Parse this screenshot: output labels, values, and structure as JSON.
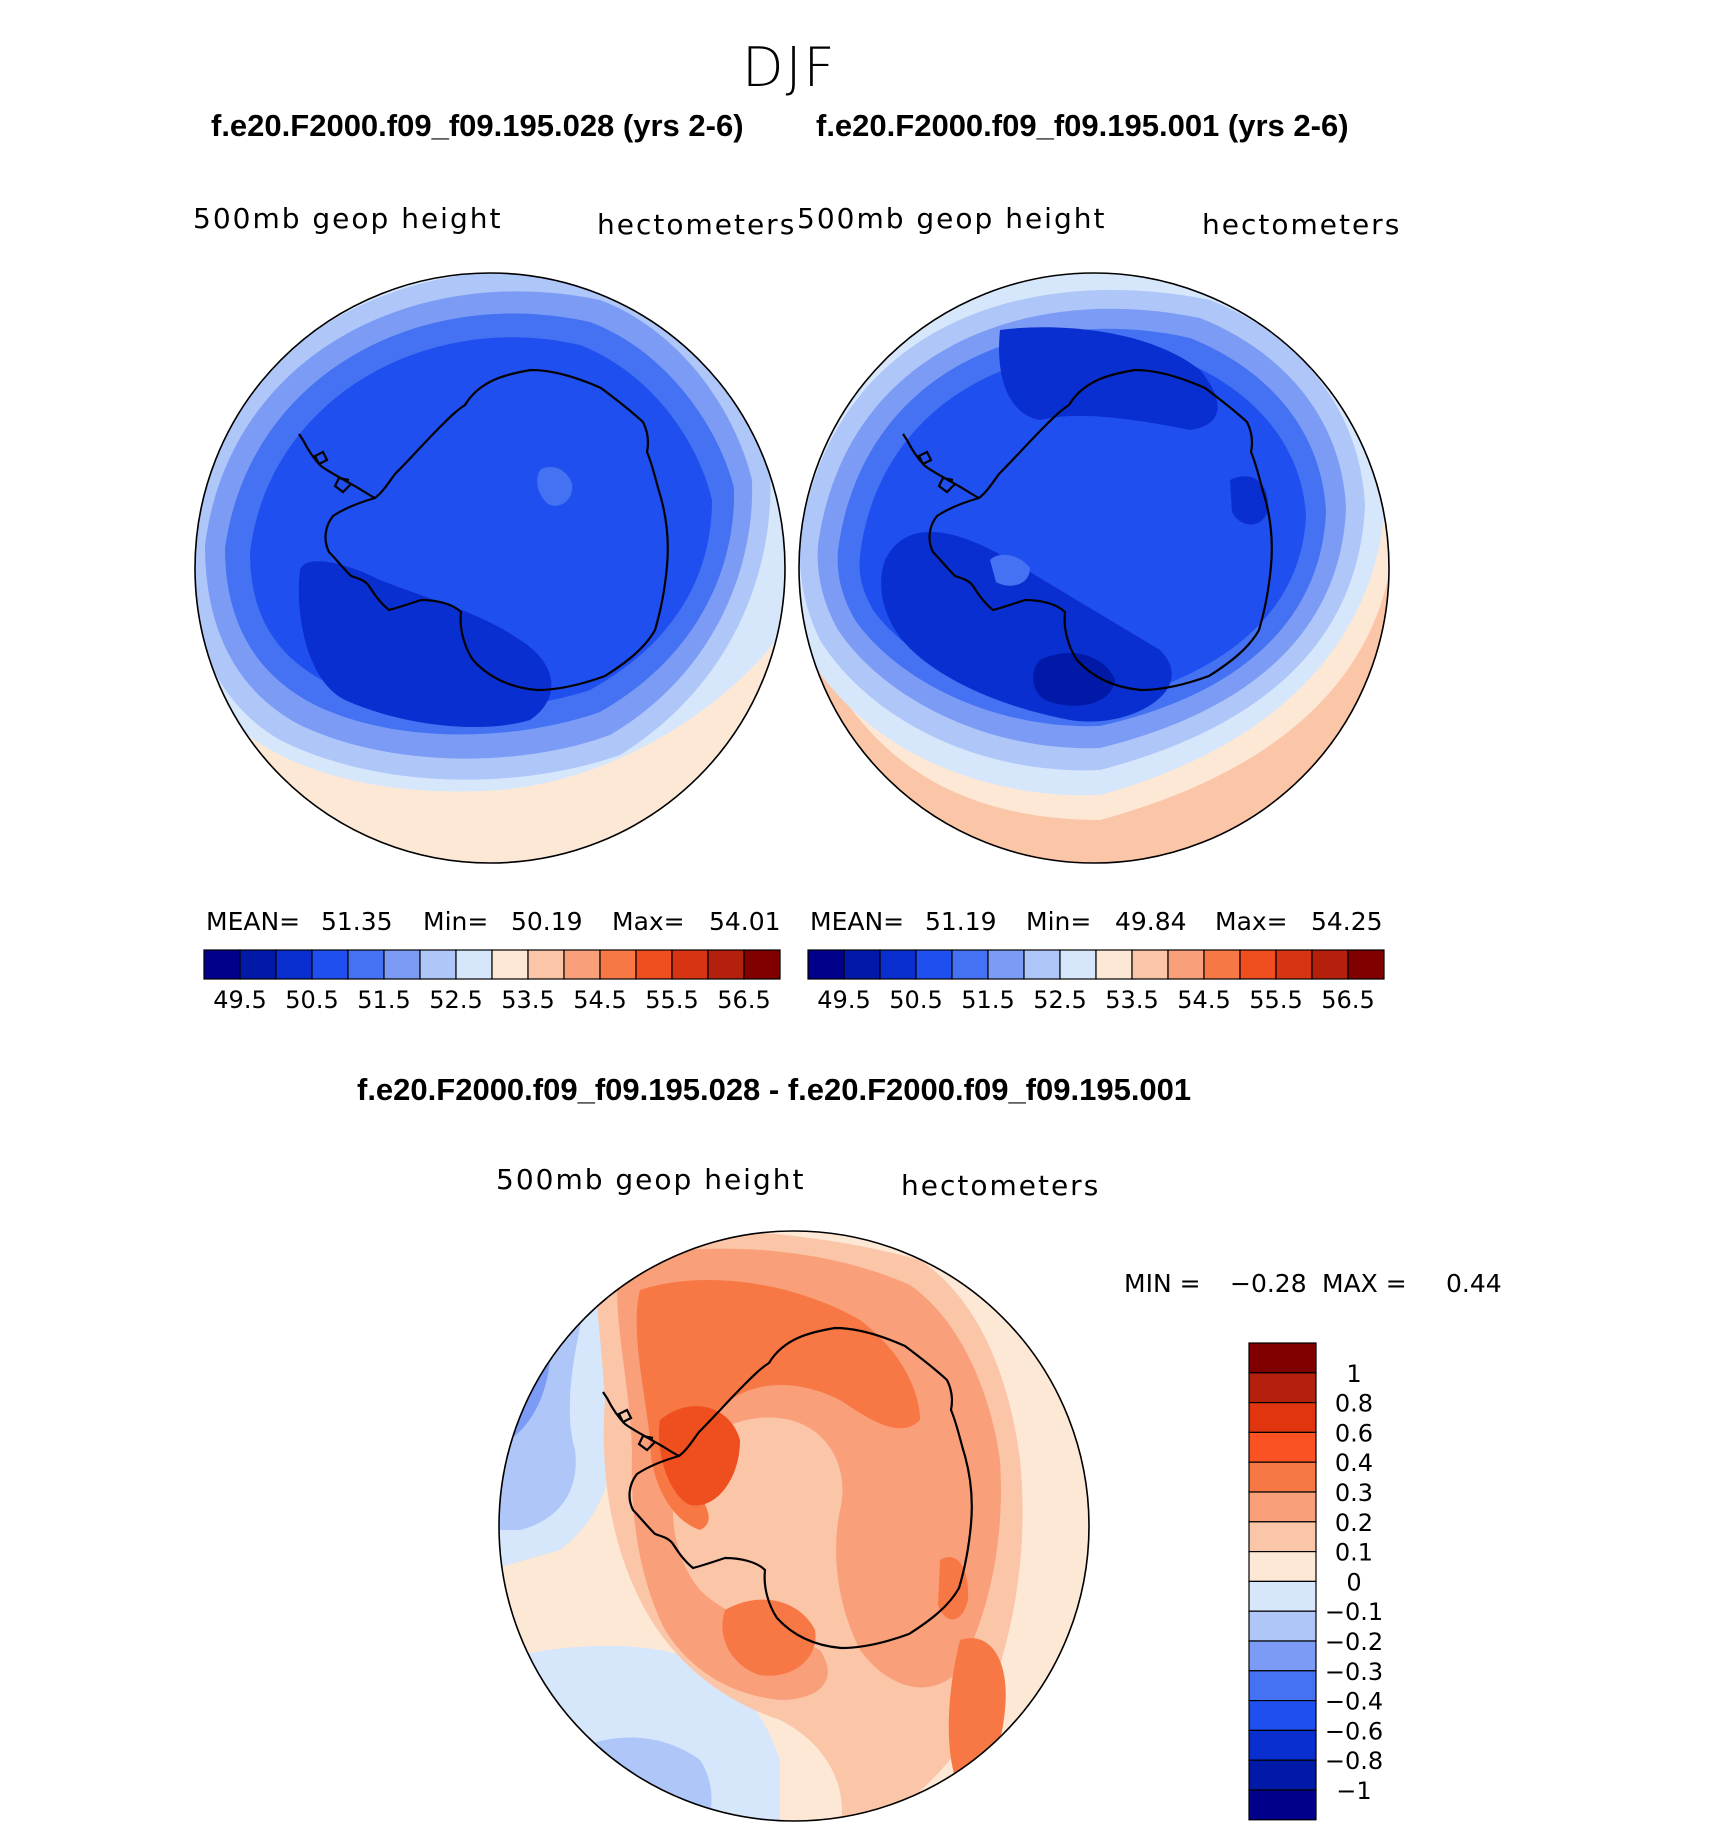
{
  "season": "DJF",
  "panels": [
    {
      "case_title": "f.e20.F2000.f09_f09.195.028 (yrs 2-6)",
      "variable": "500mb geop height",
      "units": "hectometers",
      "stats": {
        "mean_label": "MEAN=",
        "mean": "51.35",
        "min_label": "Min=",
        "min": "50.19",
        "max_label": "Max=",
        "max": "54.01"
      }
    },
    {
      "case_title": "f.e20.F2000.f09_f09.195.001 (yrs 2-6)",
      "variable": "500mb geop height",
      "units": "hectometers",
      "stats": {
        "mean_label": "MEAN=",
        "mean": "51.19",
        "min_label": "Min=",
        "min": "49.84",
        "max_label": "Max=",
        "max": "54.25"
      }
    }
  ],
  "diff_panel": {
    "title": "f.e20.F2000.f09_f09.195.028 - f.e20.F2000.f09_f09.195.001",
    "variable": "500mb geop height",
    "units": "hectometers",
    "min_label": "MIN =",
    "min": "−0.28",
    "max_label": "MAX =",
    "max": "0.44"
  },
  "colorbar_horizontal": {
    "colors": [
      "#00008b",
      "#0019a6",
      "#0a2fd0",
      "#1f4fef",
      "#4472f2",
      "#7c9bf5",
      "#aec6f8",
      "#d6e6fb",
      "#fde8d6",
      "#fbc5a8",
      "#f9a07b",
      "#f77845",
      "#ef4e1e",
      "#d63412",
      "#b3200c",
      "#800000"
    ],
    "tick_labels": [
      "49.5",
      "50.5",
      "51.5",
      "52.5",
      "53.5",
      "54.5",
      "55.5",
      "56.5"
    ]
  },
  "colorbar_vertical": {
    "colors": [
      "#800000",
      "#b3200c",
      "#e0350f",
      "#fa5222",
      "#f77845",
      "#f9a07b",
      "#fbc5a8",
      "#fde8d6",
      "#d6e6fb",
      "#aec6f8",
      "#7c9bf5",
      "#4472f2",
      "#1f4fef",
      "#0a2fd0",
      "#0019a6",
      "#00008b"
    ],
    "tick_labels": [
      "1",
      "0.8",
      "0.6",
      "0.4",
      "0.3",
      "0.2",
      "0.1",
      "0",
      "−0.1",
      "−0.2",
      "−0.3",
      "−0.4",
      "−0.6",
      "−0.8",
      "−1"
    ]
  },
  "chart_data": [
    {
      "type": "heatmap",
      "title": "f.e20.F2000.f09_f09.195.028 (yrs 2-6)",
      "projection": "south polar stereographic",
      "variable": "500mb geop height",
      "units": "hectometers",
      "mean": 51.35,
      "min": 50.19,
      "max": 54.01,
      "contour_levels": [
        49.5,
        50,
        50.5,
        51,
        51.5,
        52,
        52.5,
        53,
        53.5,
        54,
        54.5,
        55,
        55.5,
        56,
        56.5
      ]
    },
    {
      "type": "heatmap",
      "title": "f.e20.F2000.f09_f09.195.001 (yrs 2-6)",
      "projection": "south polar stereographic",
      "variable": "500mb geop height",
      "units": "hectometers",
      "mean": 51.19,
      "min": 49.84,
      "max": 54.25,
      "contour_levels": [
        49.5,
        50,
        50.5,
        51,
        51.5,
        52,
        52.5,
        53,
        53.5,
        54,
        54.5,
        55,
        55.5,
        56,
        56.5
      ]
    },
    {
      "type": "heatmap",
      "title": "f.e20.F2000.f09_f09.195.028 - f.e20.F2000.f09_f09.195.001",
      "projection": "south polar stereographic",
      "variable": "500mb geop height",
      "units": "hectometers",
      "min": -0.28,
      "max": 0.44,
      "contour_levels": [
        -1,
        -0.8,
        -0.6,
        -0.4,
        -0.3,
        -0.2,
        -0.1,
        0,
        0.1,
        0.2,
        0.3,
        0.4,
        0.6,
        0.8,
        1
      ]
    }
  ]
}
